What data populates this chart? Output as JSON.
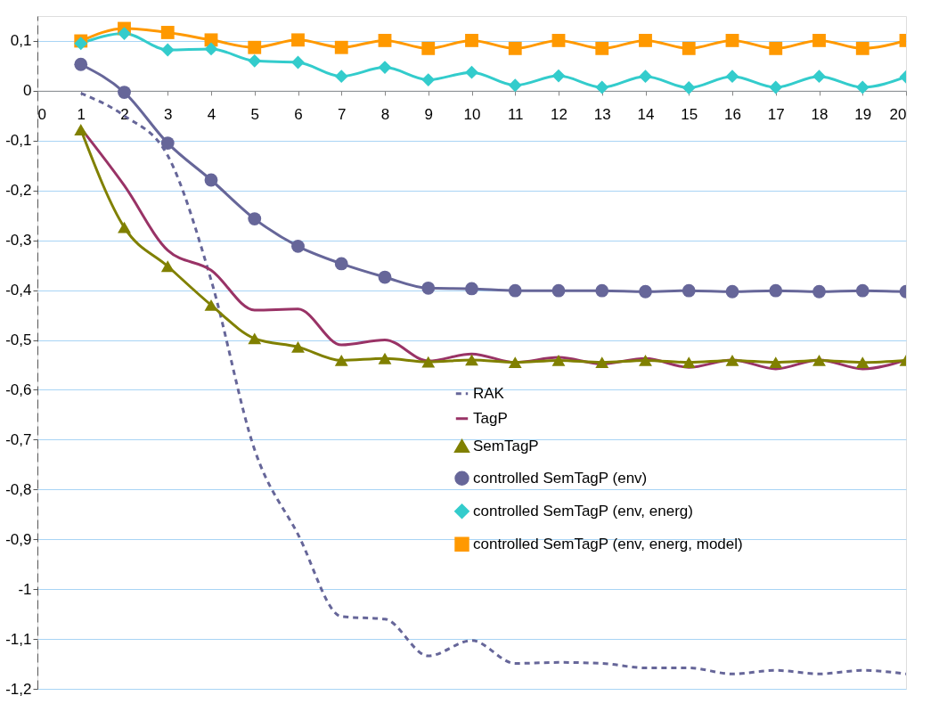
{
  "chart_data": {
    "type": "line",
    "x": [
      1,
      2,
      3,
      4,
      5,
      6,
      7,
      8,
      9,
      10,
      11,
      12,
      13,
      14,
      15,
      16,
      17,
      18,
      19,
      20
    ],
    "xlim": [
      0,
      20
    ],
    "xticks": [
      0,
      1,
      2,
      3,
      4,
      5,
      6,
      7,
      8,
      9,
      10,
      11,
      12,
      13,
      14,
      15,
      16,
      17,
      18,
      19,
      20
    ],
    "ylim": [
      -1.2,
      0.15
    ],
    "yticks": [
      {
        "value": -1.2,
        "label": "-1,2"
      },
      {
        "value": -1.1,
        "label": "-1,1"
      },
      -1,
      {
        "value": -0.9,
        "label": "-0,9"
      },
      {
        "value": -0.8,
        "label": "-0,8"
      },
      {
        "value": -0.7,
        "label": "-0,7"
      },
      {
        "value": -0.6,
        "label": "-0,6"
      },
      {
        "value": -0.5,
        "label": "-0,5"
      },
      {
        "value": -0.4,
        "label": "-0,4"
      },
      {
        "value": -0.3,
        "label": "-0,3"
      },
      {
        "value": -0.2,
        "label": "-0,2"
      },
      {
        "value": -0.1,
        "label": "-0,1"
      },
      0,
      {
        "value": 0.1,
        "label": "0,1"
      }
    ],
    "grid": "y",
    "legend": "right",
    "series": [
      {
        "name": "RAK",
        "color": "#666699",
        "line_style": "dashed",
        "marker": "none",
        "values": [
          -0.005,
          -0.05,
          -0.13,
          -0.38,
          -0.72,
          -0.89,
          -1.055,
          -1.06,
          -1.134,
          -1.103,
          -1.149,
          -1.147,
          -1.149,
          -1.158,
          -1.158,
          -1.17,
          -1.163,
          -1.17,
          -1.163,
          -1.17
        ]
      },
      {
        "name": "TagP",
        "color": "#993366",
        "line_style": "solid",
        "marker": "none",
        "values": [
          -0.075,
          -0.19,
          -0.32,
          -0.36,
          -0.44,
          -0.438,
          -0.51,
          -0.5,
          -0.542,
          -0.528,
          -0.545,
          -0.535,
          -0.548,
          -0.537,
          -0.555,
          -0.54,
          -0.558,
          -0.54,
          -0.558,
          -0.54
        ]
      },
      {
        "name": "SemTagP",
        "color": "#808000",
        "line_style": "solid",
        "marker": "triangle",
        "values": [
          -0.078,
          -0.274,
          -0.352,
          -0.43,
          -0.497,
          -0.514,
          -0.541,
          -0.537,
          -0.544,
          -0.54,
          -0.545,
          -0.541,
          -0.545,
          -0.541,
          -0.545,
          -0.541,
          -0.545,
          -0.541,
          -0.545,
          -0.541
        ]
      },
      {
        "name": "controlled SemTagP (env)",
        "color": "#666699",
        "line_style": "solid",
        "marker": "circle",
        "values": [
          0.053,
          -0.003,
          -0.105,
          -0.179,
          -0.257,
          -0.312,
          -0.347,
          -0.374,
          -0.396,
          -0.397,
          -0.401,
          -0.401,
          -0.401,
          -0.403,
          -0.401,
          -0.403,
          -0.401,
          -0.403,
          -0.401,
          -0.403
        ]
      },
      {
        "name": "controlled SemTagP (env, energ)",
        "color": "#33cccc",
        "line_style": "solid",
        "marker": "diamond",
        "values": [
          0.095,
          0.115,
          0.082,
          0.084,
          0.06,
          0.057,
          0.029,
          0.047,
          0.022,
          0.037,
          0.011,
          0.03,
          0.007,
          0.029,
          0.006,
          0.029,
          0.007,
          0.029,
          0.007,
          0.028
        ]
      },
      {
        "name": "controlled SemTagP (env, energ, model)",
        "color": "#ff9900",
        "line_style": "solid",
        "marker": "square",
        "values": [
          0.1,
          0.125,
          0.117,
          0.102,
          0.087,
          0.102,
          0.087,
          0.101,
          0.085,
          0.101,
          0.085,
          0.101,
          0.085,
          0.101,
          0.085,
          0.101,
          0.085,
          0.101,
          0.085,
          0.101
        ]
      }
    ]
  }
}
